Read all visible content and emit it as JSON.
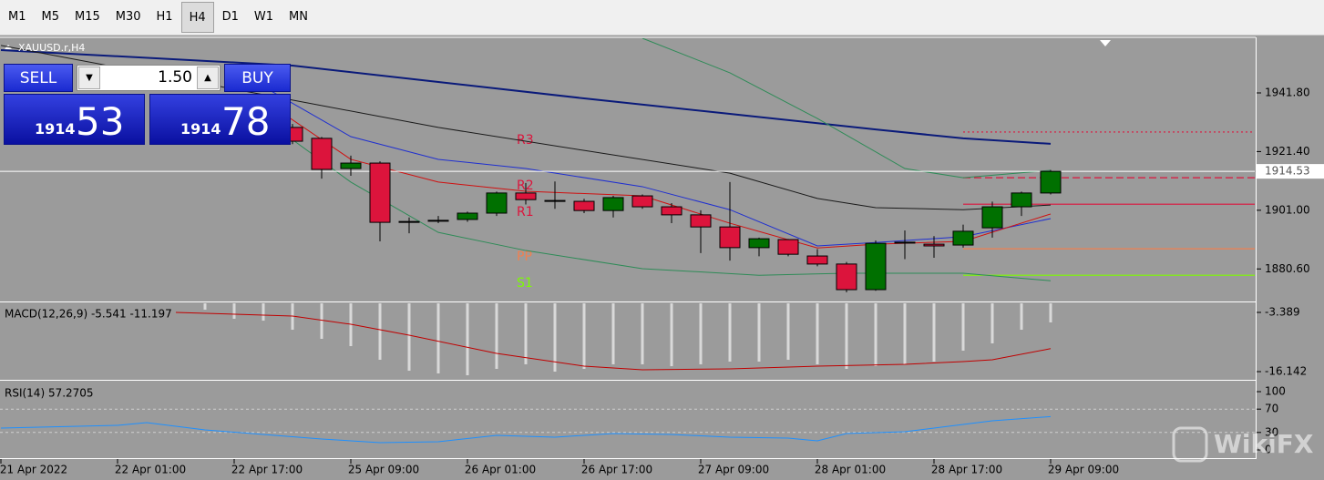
{
  "toolbar": {
    "timeframes": [
      "M1",
      "M5",
      "M15",
      "M30",
      "H1",
      "H4",
      "D1",
      "W1",
      "MN"
    ],
    "active": 5
  },
  "trade_panel": {
    "sell": "SELL",
    "buy": "BUY",
    "lot": "1.50",
    "bid_figure": "1914",
    "bid_pips": "53",
    "ask_figure": "1914",
    "ask_pips": "78"
  },
  "chart_data": [
    {
      "type": "candlestick",
      "title": "XAUUSD.r,H4",
      "xlim": [
        0,
        43
      ],
      "ylim": [
        1869.6,
        1960.8
      ],
      "yticks": [
        {
          "value": 1941.8,
          "label": "1941.80"
        },
        {
          "value": 1921.4,
          "label": "1921.40"
        },
        {
          "value": 1901.0,
          "label": "1901.00"
        },
        {
          "value": 1880.6,
          "label": "1880.60"
        }
      ],
      "x": [
        10,
        11,
        12,
        13,
        14,
        15,
        16,
        17,
        18,
        19,
        20,
        21,
        22,
        23,
        24,
        25,
        26,
        27,
        28,
        29,
        30,
        31,
        32,
        33,
        34,
        35,
        36
      ],
      "open": [
        1929.8,
        1926.0,
        1915.5,
        1917.4,
        1897.1,
        1897.5,
        1897.8,
        1900.0,
        1907.0,
        1904.4,
        1904.1,
        1900.9,
        1906.0,
        1902.2,
        1899.4,
        1895.2,
        1888.0,
        1890.8,
        1885.1,
        1882.3,
        1873.4,
        1889.9,
        1889.2,
        1888.9,
        1894.9,
        1902.2,
        1907.0
      ],
      "high": [
        1931.0,
        1926.5,
        1920.0,
        1918.0,
        1898.5,
        1899.0,
        1900.5,
        1907.5,
        1910.5,
        1911.0,
        1905.0,
        1906.0,
        1906.5,
        1903.5,
        1901.0,
        1910.8,
        1891.5,
        1891.0,
        1887.5,
        1883.0,
        1890.5,
        1894.0,
        1892.0,
        1896.0,
        1904.0,
        1907.5,
        1915.0
      ],
      "low": [
        1924.0,
        1912.0,
        1913.0,
        1890.2,
        1893.0,
        1896.5,
        1897.0,
        1899.0,
        1903.0,
        1901.5,
        1900.0,
        1898.5,
        1901.5,
        1896.5,
        1886.1,
        1883.5,
        1885.0,
        1885.0,
        1881.5,
        1872.5,
        1873.0,
        1884.0,
        1884.5,
        1888.0,
        1891.5,
        1899.0,
        1906.5
      ],
      "close": [
        1925.0,
        1915.2,
        1917.4,
        1896.8,
        1897.1,
        1897.5,
        1900.0,
        1907.0,
        1904.7,
        1904.4,
        1900.9,
        1905.4,
        1902.2,
        1899.4,
        1895.2,
        1888.0,
        1891.1,
        1885.7,
        1882.3,
        1873.4,
        1889.5,
        1889.9,
        1888.6,
        1893.7,
        1902.2,
        1907.0,
        1914.53
      ],
      "up_color": "#007000",
      "down_color": "#dc143c",
      "lines": [
        {
          "color": "#0a1a7a",
          "width": 2,
          "x": [
            0,
            10,
            15,
            20,
            25,
            30,
            33,
            36
          ],
          "values": [
            1956.7,
            1951.3,
            1945.6,
            1939.9,
            1934.5,
            1929.1,
            1926.0,
            1924.1
          ]
        },
        {
          "color": "#1a1a1a",
          "width": 1,
          "x": [
            0,
            10,
            15,
            20,
            25,
            28,
            30,
            33,
            36
          ],
          "values": [
            1958.3,
            1939.3,
            1929.8,
            1921.8,
            1913.9,
            1905.1,
            1901.9,
            1901.2,
            1902.8
          ]
        },
        {
          "color": "#1f2fd0",
          "width": 1,
          "x": [
            9,
            12,
            15,
            18,
            22,
            25,
            28,
            30,
            33,
            36
          ],
          "values": [
            1944.0,
            1926.6,
            1918.7,
            1915.5,
            1909.2,
            1901.2,
            1888.6,
            1889.8,
            1891.8,
            1898.1
          ]
        },
        {
          "color": "#d01010",
          "width": 1,
          "x": [
            9,
            12,
            15,
            18,
            22,
            25,
            28,
            30,
            33,
            36
          ],
          "values": [
            1939.3,
            1918.7,
            1910.8,
            1907.6,
            1906.0,
            1896.5,
            1887.9,
            1889.2,
            1890.2,
            1899.7
          ]
        },
        {
          "color": "#2e8b57",
          "width": 1,
          "x": [
            9,
            12,
            15,
            18,
            22,
            26,
            29,
            33,
            36
          ],
          "values": [
            1932.9,
            1910.8,
            1893.3,
            1887.0,
            1880.7,
            1878.4,
            1879.1,
            1879.1,
            1876.5
          ]
        },
        {
          "color": "#2e8b57",
          "width": 1,
          "x": [
            22,
            25,
            28,
            31,
            33,
            36
          ],
          "values": [
            1960.8,
            1948.8,
            1932.9,
            1915.5,
            1912.3,
            1914.9
          ]
        }
      ],
      "levels": [
        {
          "label": "R3",
          "value": 1928.2,
          "color": "#dc143c",
          "dash": "2 3"
        },
        {
          "label": "R2",
          "value": 1912.3,
          "color": "#dc143c",
          "dash": "8 4"
        },
        {
          "label": "R1",
          "value": 1903.1,
          "color": "#dc143c",
          "dash": "none"
        },
        {
          "label": "PP",
          "value": 1887.6,
          "color": "#f08050",
          "dash": "none"
        },
        {
          "label": "S1",
          "value": 1878.4,
          "color": "#7cfc00",
          "dash": "none"
        }
      ],
      "current_price": 1914.53
    },
    {
      "type": "macd",
      "title": "MACD(12,26,9) -5.541 -11.197",
      "xlim": [
        0,
        43
      ],
      "ylim": [
        -17.71,
        -1.43
      ],
      "yticks": [
        -3.389,
        -16.142
      ],
      "x": [
        7,
        8,
        9,
        10,
        11,
        12,
        13,
        14,
        15,
        16,
        17,
        18,
        19,
        20,
        21,
        22,
        23,
        24,
        25,
        26,
        27,
        28,
        29,
        30,
        31,
        32,
        33,
        34,
        35,
        36
      ],
      "values": [
        -2.8,
        -4.76,
        -5.16,
        -7.12,
        -9.08,
        -10.65,
        -13.59,
        -15.95,
        -16.53,
        -16.93,
        -15.55,
        -14.57,
        -16.14,
        -15.55,
        -14.57,
        -14.57,
        -14.97,
        -14.57,
        -13.98,
        -13.98,
        -13.59,
        -14.57,
        -15.55,
        -14.97,
        -14.57,
        -13.98,
        -11.63,
        -10.06,
        -7.12,
        -5.541
      ],
      "color": "#d9d9d9",
      "signal": {
        "color": "#c00000",
        "x": [
          6,
          10,
          12,
          14,
          17,
          20,
          22,
          25,
          28,
          31,
          33,
          34,
          36
        ],
        "values": [
          -3.39,
          -4.17,
          -5.94,
          -8.29,
          -12.22,
          -14.96,
          -15.75,
          -15.55,
          -14.96,
          -14.57,
          -13.98,
          -13.59,
          -11.197
        ]
      }
    },
    {
      "type": "line",
      "title": "RSI(14) 57.2705",
      "xlim": [
        0,
        43
      ],
      "ylim": [
        -12.5,
        115.6
      ],
      "yticks": [
        100,
        70,
        30,
        0
      ],
      "levels": [
        70,
        30
      ],
      "xticks": [
        {
          "value": 0,
          "label": "21 Apr 2022"
        },
        {
          "value": 4,
          "label": "22 Apr 01:00"
        },
        {
          "value": 8,
          "label": "22 Apr 17:00"
        },
        {
          "value": 12,
          "label": "25 Apr 09:00"
        },
        {
          "value": 16,
          "label": "26 Apr 01:00"
        },
        {
          "value": 20,
          "label": "26 Apr 17:00"
        },
        {
          "value": 24,
          "label": "27 Apr 09:00"
        },
        {
          "value": 28,
          "label": "28 Apr 01:00"
        },
        {
          "value": 32,
          "label": "28 Apr 17:00"
        },
        {
          "value": 36,
          "label": "29 Apr 09:00"
        }
      ],
      "series": [
        {
          "color": "#1e90ff",
          "x": [
            0,
            4,
            5,
            7,
            9,
            11,
            13,
            15,
            17,
            19,
            21,
            23,
            25,
            27,
            28,
            29,
            31,
            33,
            34,
            36
          ],
          "values": [
            37.5,
            42.2,
            46.9,
            34.4,
            26.6,
            18.8,
            12.5,
            14.1,
            25,
            21.9,
            28.1,
            26.6,
            21.9,
            20.3,
            15.6,
            28.1,
            31.3,
            43.8,
            50,
            57.2705
          ]
        }
      ]
    }
  ],
  "watermark": "WikiFX"
}
